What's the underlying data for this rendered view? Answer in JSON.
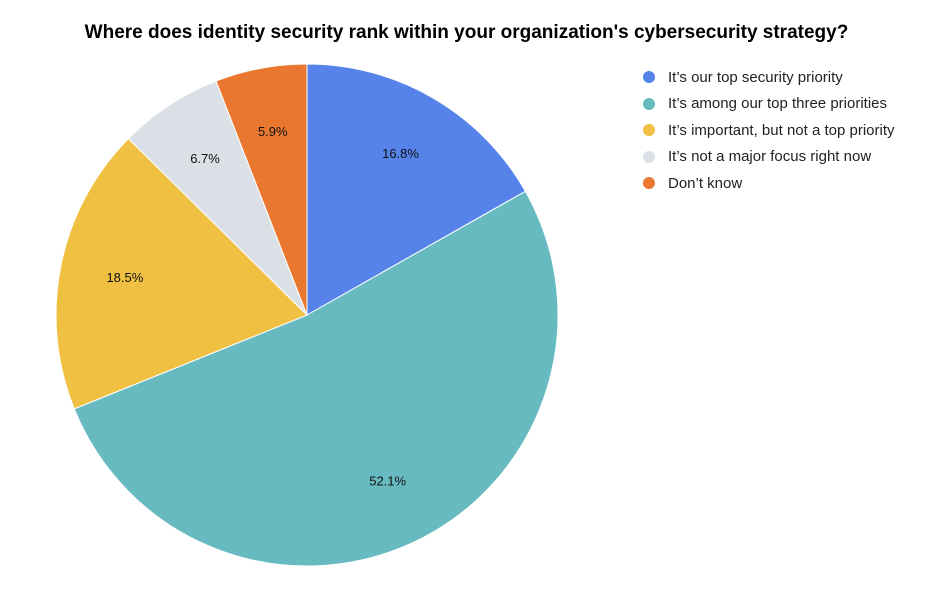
{
  "chart_data": {
    "type": "pie",
    "title": "Where does identity security rank within your organization's cybersecurity strategy?",
    "slices": [
      {
        "label": " It’s our top security priority",
        "value": 16.8,
        "display": "16.8%",
        "color": "#5683ea"
      },
      {
        "label": "It’s among our top three priorities",
        "value": 52.1,
        "display": "52.1%",
        "color": "#68bac1"
      },
      {
        "label": "It’s important, but not a top priority",
        "value": 18.5,
        "display": "18.5%",
        "color": "#f0c042"
      },
      {
        "label": "It’s not a major focus right now",
        "value": 6.7,
        "display": "6.7%",
        "color": "#dbdfe6"
      },
      {
        "label": "Don’t know",
        "value": 5.9,
        "display": "5.9%",
        "color": "#ea7730"
      }
    ],
    "start_angle": "top (12 o'clock)",
    "direction": "clockwise",
    "legend_position": "right"
  }
}
